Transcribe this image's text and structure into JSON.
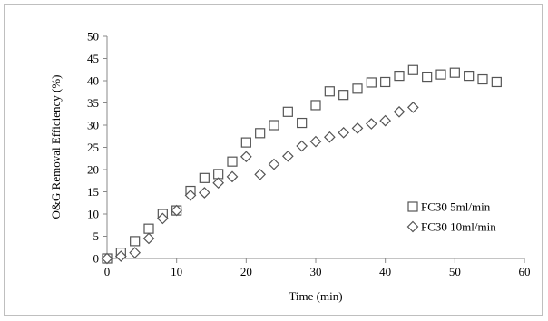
{
  "chart_data": {
    "type": "scatter",
    "xlabel": "Time (min)",
    "ylabel": "O&G Removal Efficiency (%)",
    "xlim": [
      0,
      60
    ],
    "ylim": [
      0,
      50
    ],
    "xticks": [
      0,
      10,
      20,
      30,
      40,
      50,
      60
    ],
    "yticks": [
      0,
      5,
      10,
      15,
      20,
      25,
      30,
      35,
      40,
      45,
      50
    ],
    "grid": false,
    "legend_position": "right",
    "series": [
      {
        "name": "FC30 5ml/min",
        "marker": "square",
        "color": "#555555",
        "points": [
          [
            0,
            0
          ],
          [
            2,
            1.3
          ],
          [
            4,
            3.9
          ],
          [
            6,
            6.7
          ],
          [
            8,
            10.0
          ],
          [
            10,
            10.8
          ],
          [
            12,
            15.2
          ],
          [
            14,
            18.1
          ],
          [
            16,
            19.0
          ],
          [
            18,
            21.8
          ],
          [
            20,
            26.1
          ],
          [
            22,
            28.2
          ],
          [
            24,
            30.0
          ],
          [
            26,
            33.0
          ],
          [
            28,
            30.5
          ],
          [
            30,
            34.5
          ],
          [
            32,
            37.6
          ],
          [
            34,
            36.8
          ],
          [
            36,
            38.2
          ],
          [
            38,
            39.6
          ],
          [
            40,
            39.7
          ],
          [
            42,
            41.1
          ],
          [
            44,
            42.4
          ],
          [
            46,
            40.9
          ],
          [
            48,
            41.4
          ],
          [
            50,
            41.8
          ],
          [
            52,
            41.1
          ],
          [
            54,
            40.3
          ],
          [
            56,
            39.7
          ]
        ]
      },
      {
        "name": "FC30 10ml/min",
        "marker": "diamond",
        "color": "#555555",
        "points": [
          [
            0,
            0
          ],
          [
            2,
            0.5
          ],
          [
            4,
            1.3
          ],
          [
            6,
            4.5
          ],
          [
            8,
            9.0
          ],
          [
            10,
            10.8
          ],
          [
            12,
            14.2
          ],
          [
            14,
            14.8
          ],
          [
            16,
            17.0
          ],
          [
            18,
            18.4
          ],
          [
            20,
            22.9
          ],
          [
            22,
            18.9
          ],
          [
            24,
            21.2
          ],
          [
            26,
            23.0
          ],
          [
            28,
            25.3
          ],
          [
            30,
            26.3
          ],
          [
            32,
            27.3
          ],
          [
            34,
            28.3
          ],
          [
            36,
            29.3
          ],
          [
            38,
            30.3
          ],
          [
            40,
            31.0
          ],
          [
            42,
            33.0
          ],
          [
            44,
            34.0
          ]
        ]
      }
    ]
  }
}
